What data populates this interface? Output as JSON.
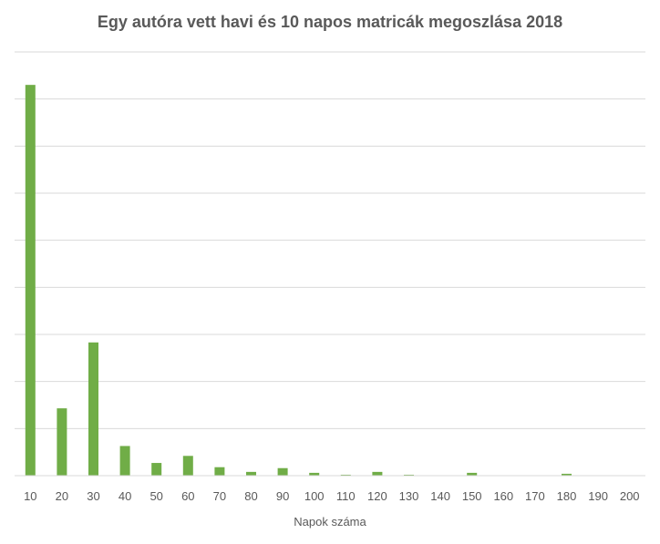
{
  "chart_data": {
    "type": "bar",
    "title": "Egy autóra vett havi és 10 napos matricák megoszlása 2018",
    "xlabel": "Napok száma",
    "ylabel": "",
    "categories": [
      "10",
      "20",
      "30",
      "40",
      "50",
      "60",
      "70",
      "80",
      "90",
      "100",
      "110",
      "120",
      "130",
      "140",
      "150",
      "160",
      "170",
      "180",
      "190",
      "200"
    ],
    "series": [
      {
        "values": [
          83,
          14.3,
          28.3,
          6.3,
          2.7,
          4.2,
          1.8,
          0.8,
          1.6,
          0.6,
          0.2,
          0.8,
          0.2,
          0,
          0.6,
          0,
          0,
          0.4,
          0,
          0
        ]
      }
    ],
    "ylim": [
      0,
      90
    ],
    "y_gridlines": [
      10,
      20,
      30,
      40,
      50,
      60,
      70,
      80,
      90
    ],
    "grid": true,
    "legend": "none",
    "bar_color": "#70ad47"
  }
}
